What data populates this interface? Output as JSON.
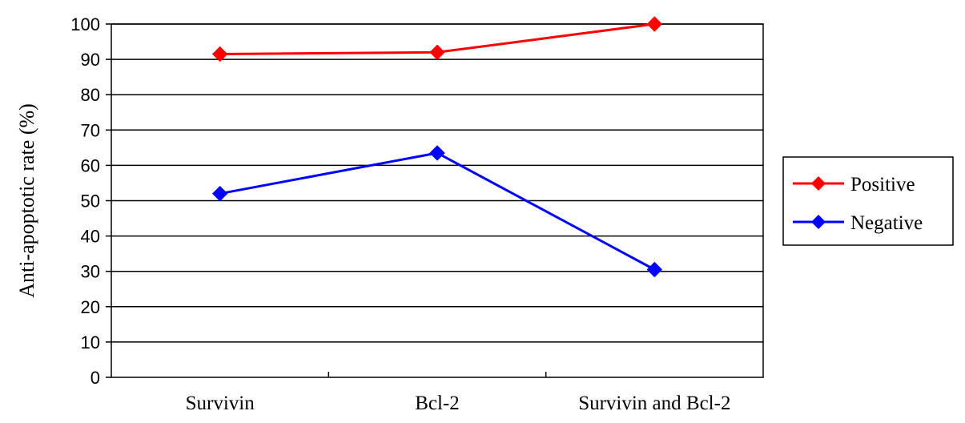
{
  "chart_data": {
    "type": "line",
    "title": "",
    "xlabel": "",
    "ylabel": "Anti-apoptotic rate (%)",
    "categories": [
      "Survivin",
      "Bcl-2",
      "Survivin and Bcl-2"
    ],
    "ylim": [
      0,
      100
    ],
    "yticks": [
      "0",
      "10",
      "20",
      "30",
      "40",
      "50",
      "60",
      "70",
      "80",
      "90",
      "100"
    ],
    "grid": true,
    "legend_position": "right",
    "series": [
      {
        "name": "Positive",
        "color": "#ff0000",
        "marker": "diamond",
        "values": [
          91.5,
          92,
          100
        ]
      },
      {
        "name": "Negative",
        "color": "#0000ff",
        "marker": "diamond",
        "values": [
          52,
          63.5,
          30.5
        ]
      }
    ]
  }
}
